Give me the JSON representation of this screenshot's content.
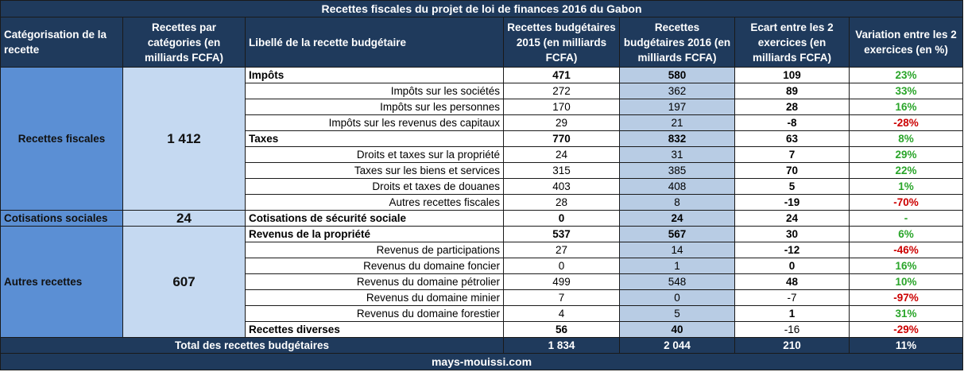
{
  "title": "Recettes fiscales du projet de loi de finances 2016 du Gabon",
  "headers": {
    "categorisation": "Catégorisation de la recette",
    "par_categories": "Recettes par catégories (en milliards FCFA)",
    "libelle": "Libellé de la recette budgétaire",
    "r2015": "Recettes budgétaires 2015 (en milliards FCFA)",
    "r2016": "Recettes budgétaires 2016 (en milliards FCFA)",
    "ecart": "Ecart entre les 2 exercices (en milliards FCFA)",
    "variation": "Variation entre les 2 exercices (en %)"
  },
  "categories": [
    {
      "name": "Recettes fiscales",
      "amount": "1 412"
    },
    {
      "name": "Cotisations sociales",
      "amount": "24"
    },
    {
      "name": "Autres recettes",
      "amount": "607"
    }
  ],
  "rows": [
    {
      "label": "Impôts",
      "main": true,
      "r2015": "471",
      "r2016": "580",
      "ecart": "109",
      "ecart_bold": true,
      "var": "23%",
      "var_sign": "pos"
    },
    {
      "label": "Impôts sur les sociétés",
      "main": false,
      "r2015": "272",
      "r2016": "362",
      "ecart": "89",
      "ecart_bold": true,
      "var": "33%",
      "var_sign": "pos"
    },
    {
      "label": "Impôts sur les personnes",
      "main": false,
      "r2015": "170",
      "r2016": "197",
      "ecart": "28",
      "ecart_bold": true,
      "var": "16%",
      "var_sign": "pos"
    },
    {
      "label": "Impôts sur les revenus des capitaux",
      "main": false,
      "r2015": "29",
      "r2016": "21",
      "ecart": "-8",
      "ecart_bold": true,
      "var": "-28%",
      "var_sign": "neg"
    },
    {
      "label": "Taxes",
      "main": true,
      "r2015": "770",
      "r2016": "832",
      "ecart": "63",
      "ecart_bold": true,
      "var": "8%",
      "var_sign": "pos"
    },
    {
      "label": "Droits et taxes sur la propriété",
      "main": false,
      "r2015": "24",
      "r2016": "31",
      "ecart": "7",
      "ecart_bold": true,
      "var": "29%",
      "var_sign": "pos"
    },
    {
      "label": "Taxes sur les biens et services",
      "main": false,
      "r2015": "315",
      "r2016": "385",
      "ecart": "70",
      "ecart_bold": true,
      "var": "22%",
      "var_sign": "pos"
    },
    {
      "label": "Droits et taxes de douanes",
      "main": false,
      "r2015": "403",
      "r2016": "408",
      "ecart": "5",
      "ecart_bold": true,
      "var": "1%",
      "var_sign": "pos"
    },
    {
      "label": "Autres recettes fiscales",
      "main": false,
      "r2015": "28",
      "r2016": "8",
      "ecart": "-19",
      "ecart_bold": true,
      "var": "-70%",
      "var_sign": "neg"
    },
    {
      "label": "Cotisations  de sécurité sociale",
      "main": true,
      "r2015": "0",
      "r2016": "24",
      "ecart": "24",
      "ecart_bold": true,
      "var": "-",
      "var_sign": "neu"
    },
    {
      "label": "Revenus de la propriété",
      "main": true,
      "r2015": "537",
      "r2016": "567",
      "ecart": "30",
      "ecart_bold": true,
      "var": "6%",
      "var_sign": "pos"
    },
    {
      "label": "Revenus de participations",
      "main": false,
      "r2015": "27",
      "r2016": "14",
      "ecart": "-12",
      "ecart_bold": true,
      "var": "-46%",
      "var_sign": "neg"
    },
    {
      "label": "Revenus du domaine foncier",
      "main": false,
      "r2015": "0",
      "r2016": "1",
      "ecart": "0",
      "ecart_bold": true,
      "var": "16%",
      "var_sign": "pos"
    },
    {
      "label": "Revenus du domaine pétrolier",
      "main": false,
      "r2015": "499",
      "r2016": "548",
      "ecart": "48",
      "ecart_bold": true,
      "var": "10%",
      "var_sign": "pos"
    },
    {
      "label": "Revenus du domaine minier",
      "main": false,
      "r2015": "7",
      "r2016": "0",
      "ecart": "-7",
      "ecart_bold": false,
      "var": "-97%",
      "var_sign": "neg"
    },
    {
      "label": "Revenus du domaine forestier",
      "main": false,
      "r2015": "4",
      "r2016": "5",
      "ecart": "1",
      "ecart_bold": true,
      "var": "31%",
      "var_sign": "pos"
    },
    {
      "label": "Recettes diverses",
      "main": true,
      "r2015": "56",
      "r2016": "40",
      "ecart": "-16",
      "ecart_bold": false,
      "var": "-29%",
      "var_sign": "neg"
    }
  ],
  "total": {
    "label": "Total des recettes budgétaires",
    "r2015": "1 834",
    "r2016": "2 044",
    "ecart": "210",
    "var": "11%"
  },
  "footer": "mays-mouissi.com",
  "colors": {
    "header_bg": "#1f3a5c",
    "category_bg": "#5b8fd4",
    "amount_bg": "#c5d9f1",
    "col2016_bg": "#b8cce4",
    "positive": "#2aa52a",
    "negative": "#cc0000"
  }
}
